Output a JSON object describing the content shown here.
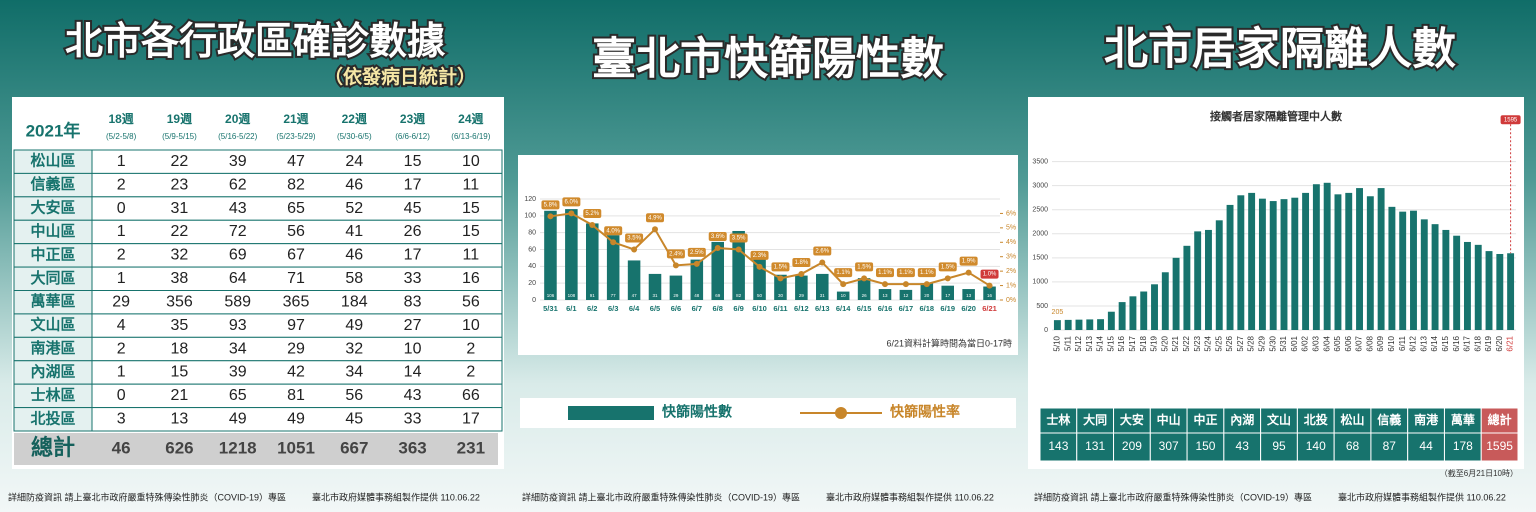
{
  "titles": {
    "left": "北市各行政區確診數據",
    "left_subtitle": "（依發病日統計）",
    "middle": "臺北市快篩陽性數",
    "right": "北市居家隔離人數"
  },
  "footer": {
    "info": "詳細防疫資訊 請上臺北市政府嚴重特殊傳染性肺炎（COVID-19）專區",
    "credit": "臺北市政府媒體事務組製作提供 110.06.22"
  },
  "table": {
    "year": "2021年",
    "columns": [
      {
        "week": "18週",
        "range": "(5/2-5/8)"
      },
      {
        "week": "19週",
        "range": "(5/9-5/15)"
      },
      {
        "week": "20週",
        "range": "(5/16-5/22)"
      },
      {
        "week": "21週",
        "range": "(5/23-5/29)"
      },
      {
        "week": "22週",
        "range": "(5/30-6/5)"
      },
      {
        "week": "23週",
        "range": "(6/6-6/12)"
      },
      {
        "week": "24週",
        "range": "(6/13-6/19)"
      }
    ],
    "rows": [
      [
        "松山區",
        1,
        22,
        39,
        47,
        24,
        15,
        10
      ],
      [
        "信義區",
        2,
        23,
        62,
        82,
        46,
        17,
        11
      ],
      [
        "大安區",
        0,
        31,
        43,
        65,
        52,
        45,
        15
      ],
      [
        "中山區",
        1,
        22,
        72,
        56,
        41,
        26,
        15
      ],
      [
        "中正區",
        2,
        32,
        69,
        67,
        46,
        17,
        11
      ],
      [
        "大同區",
        1,
        38,
        64,
        71,
        58,
        33,
        16
      ],
      [
        "萬華區",
        29,
        356,
        589,
        365,
        184,
        83,
        56
      ],
      [
        "文山區",
        4,
        35,
        93,
        97,
        49,
        27,
        10
      ],
      [
        "南港區",
        2,
        18,
        34,
        29,
        32,
        10,
        2
      ],
      [
        "內湖區",
        1,
        15,
        39,
        42,
        34,
        14,
        2
      ],
      [
        "士林區",
        0,
        21,
        65,
        81,
        56,
        43,
        66
      ],
      [
        "北投區",
        3,
        13,
        49,
        49,
        45,
        33,
        17
      ]
    ],
    "total": {
      "label": "總計",
      "values": [
        46,
        626,
        1218,
        1051,
        667,
        363,
        231
      ]
    }
  },
  "chart_data": [
    {
      "type": "bar",
      "categories": [
        "5/31",
        "6/1",
        "6/2",
        "6/3",
        "6/4",
        "6/5",
        "6/6",
        "6/7",
        "6/8",
        "6/9",
        "6/10",
        "6/11",
        "6/12",
        "6/13",
        "6/14",
        "6/15",
        "6/16",
        "6/17",
        "6/18",
        "6/19",
        "6/20",
        "6/21"
      ],
      "series": [
        {
          "name": "快篩陽性數",
          "color": "#17736d",
          "values": [
            106,
            108,
            91,
            77,
            47,
            31,
            29,
            48,
            69,
            82,
            50,
            30,
            29,
            31,
            10,
            26,
            13,
            12,
            20,
            17,
            13,
            16
          ]
        },
        {
          "name": "快篩陽性率",
          "type": "line",
          "axis": "y2",
          "color": "#c8862a",
          "values": [
            5.8,
            6.0,
            5.2,
            4.0,
            3.5,
            4.9,
            2.4,
            2.5,
            3.6,
            3.5,
            2.3,
            1.5,
            1.8,
            2.6,
            1.1,
            1.5,
            1.1,
            1.1,
            1.1,
            1.5,
            1.9,
            1.0
          ],
          "value_labels": [
            "5.8%",
            "6.0%",
            "5.2%",
            "4.0%",
            "3.5%",
            "4.9%",
            "2.4%",
            "2.5%",
            "3.6%",
            "3.5%",
            "2.3%",
            "1.5%",
            "1.8%",
            "2.6%",
            "1.1%",
            "1.5%",
            "1.1%",
            "1.1%",
            "1.1%",
            "1.5%",
            "1.9%",
            "1.0%"
          ]
        }
      ],
      "ylim": [
        0,
        120
      ],
      "yticks": [
        0,
        20,
        40,
        60,
        80,
        100,
        120
      ],
      "y2lim": [
        0,
        7
      ],
      "y2ticks": [
        {
          "value": 0,
          "label": "0%"
        },
        {
          "value": 1,
          "label": "1%"
        },
        {
          "value": 2,
          "label": "2%"
        },
        {
          "value": 3,
          "label": "3%"
        },
        {
          "value": 4,
          "label": "4%"
        },
        {
          "value": 5,
          "label": "5%"
        },
        {
          "value": 6,
          "label": "6%"
        }
      ],
      "note": "6/21資料計算時間為當日0-17時"
    },
    {
      "type": "bar",
      "title": "接觸者居家隔離管理中人數",
      "color": "#17736d",
      "categories": [
        "5/10",
        "5/11",
        "5/12",
        "5/13",
        "5/14",
        "5/15",
        "5/16",
        "5/17",
        "5/18",
        "5/19",
        "5/20",
        "5/21",
        "5/22",
        "5/23",
        "5/24",
        "5/25",
        "5/26",
        "5/27",
        "5/28",
        "5/29",
        "5/30",
        "5/31",
        "6/01",
        "6/02",
        "6/03",
        "6/04",
        "6/05",
        "6/06",
        "6/07",
        "6/08",
        "6/09",
        "6/10",
        "6/11",
        "6/12",
        "6/13",
        "6/14",
        "6/15",
        "6/16",
        "6/17",
        "6/18",
        "6/19",
        "6/20",
        "6/21"
      ],
      "values": [
        205,
        210,
        215,
        220,
        225,
        380,
        580,
        700,
        800,
        950,
        1200,
        1500,
        1750,
        2050,
        2080,
        2280,
        2600,
        2800,
        2850,
        2730,
        2680,
        2720,
        2750,
        2850,
        3030,
        3060,
        2820,
        2850,
        2950,
        2780,
        2950,
        2560,
        2460,
        2480,
        2300,
        2200,
        2080,
        1960,
        1830,
        1770,
        1640,
        1580,
        1595
      ],
      "ylim": [
        0,
        3700
      ],
      "yticks": [
        0,
        500,
        1000,
        1500,
        2000,
        2500,
        3000,
        3500
      ],
      "table": {
        "districts": [
          "士林",
          "大同",
          "大安",
          "中山",
          "中正",
          "內湖",
          "文山",
          "北投",
          "松山",
          "信義",
          "南港",
          "萬華",
          "總計"
        ],
        "counts": [
          143,
          131,
          209,
          307,
          150,
          43,
          95,
          140,
          68,
          87,
          44,
          178,
          1595
        ]
      },
      "note": "（截至6月21日10時）"
    }
  ]
}
